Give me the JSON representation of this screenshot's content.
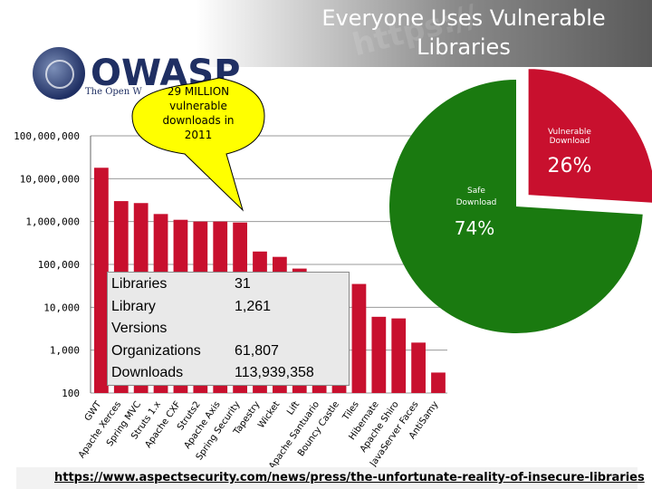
{
  "slide": {
    "title": "Everyone Uses Vulnerable Libraries",
    "watermark": "https://",
    "logo_text": "OWASP",
    "logo_subtext": "The Open W",
    "footer_link": "https://www.aspectsecurity.com/news/press/the-unfortunate-reality-of-insecure-libraries"
  },
  "callout": {
    "lines": [
      "29 MILLION",
      "vulnerable",
      "downloads in",
      "2011"
    ]
  },
  "stats": {
    "rows": [
      {
        "label": "Libraries",
        "value": "31"
      },
      {
        "label": "Library",
        "value": "1,261"
      },
      {
        "label": "Versions",
        "value": ""
      },
      {
        "label": "Organizations",
        "value": "61,807"
      },
      {
        "label": "Downloads",
        "value": "113,939,358"
      }
    ]
  },
  "colors": {
    "bar": "#c8102e",
    "pie_safe": "#1a7a10",
    "pie_vulnerable": "#c8102e",
    "callout": "#ffff00",
    "grid": "#999999"
  },
  "chart_data": [
    {
      "type": "bar",
      "scale": "log",
      "ylim": [
        100,
        100000000
      ],
      "yticks": [
        100,
        1000,
        10000,
        100000,
        1000000,
        10000000,
        100000000
      ],
      "ytick_labels": [
        "100",
        "1,000",
        "10,000",
        "100,000",
        "1,000,000",
        "10,000,000",
        "100,000,000"
      ],
      "grid": true,
      "categories": [
        "GWT",
        "Apache Xerces",
        "Spring MVC",
        "Struts 1.x",
        "Apache CXF",
        "Struts2",
        "Apache Axis",
        "Spring Security",
        "Tapestry",
        "Wicket",
        "Lift",
        "Apache Santuario",
        "Bouncy Castle",
        "Tiles",
        "Hibernate",
        "Apache Shiro",
        "JavaServer Faces",
        "AntiSamy"
      ],
      "values": [
        18000000,
        3000000,
        2700000,
        1500000,
        1100000,
        1000000,
        1000000,
        950000,
        200000,
        150000,
        80000,
        60000,
        50000,
        35000,
        6000,
        5500,
        1500,
        300
      ]
    },
    {
      "type": "pie",
      "categories": [
        "Safe Download",
        "Vulnerable Download"
      ],
      "values": [
        74,
        26
      ],
      "labels": [
        "74%",
        "26%"
      ]
    }
  ]
}
